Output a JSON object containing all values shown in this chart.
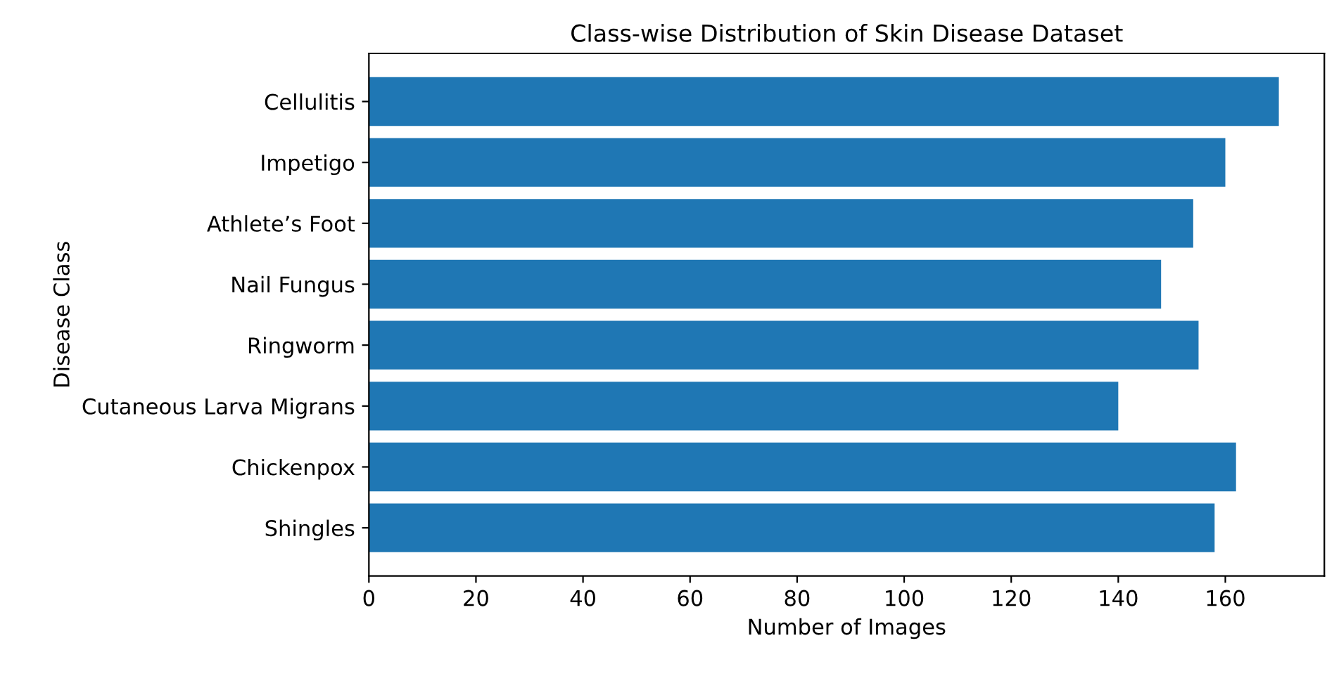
{
  "chart_data": {
    "type": "bar",
    "orientation": "horizontal",
    "title": "Class-wise Distribution of Skin Disease Dataset",
    "xlabel": "Number of Images",
    "ylabel": "Disease Class",
    "categories": [
      "Cellulitis",
      "Impetigo",
      "Athlete’s Foot",
      "Nail Fungus",
      "Ringworm",
      "Cutaneous Larva Migrans",
      "Chickenpox",
      "Shingles"
    ],
    "values": [
      170,
      160,
      154,
      148,
      155,
      140,
      162,
      158
    ],
    "color": "#1f77b4",
    "xlim": [
      0,
      178.5
    ],
    "xticks": [
      0,
      20,
      40,
      60,
      80,
      100,
      120,
      140,
      160
    ],
    "grid": false,
    "legend": false
  }
}
